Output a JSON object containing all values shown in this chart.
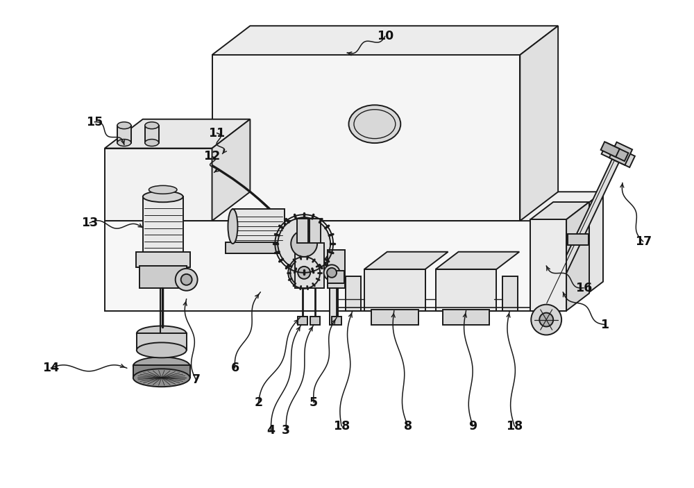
{
  "bg_color": "#ffffff",
  "line_color": "#1a1a1a",
  "lw": 1.4,
  "figsize": [
    10.0,
    7.03
  ],
  "dpi": 100
}
